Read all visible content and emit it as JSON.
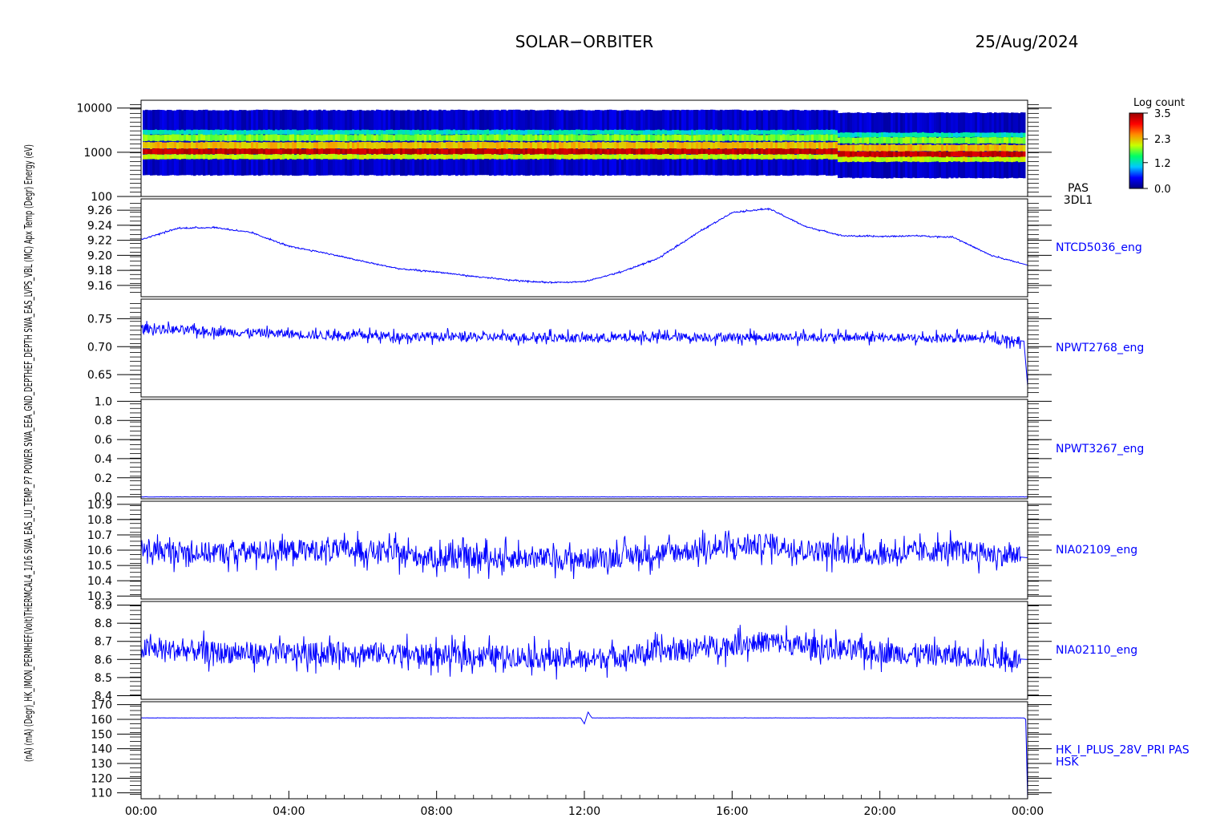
{
  "header": {
    "mission": "SOLAR−ORBITER",
    "date": "25/Aug/2024"
  },
  "y_axis_overlap_label": "(nA) (mA) (Degr)_HK_IMON_PERMHEF(Volt)THERMCAL4_1/16 SWA_EAS_LU_TEMP_P7 POWER SWA_EEA_GND_DEPTHEF_DEPTH SWA_EAS_LVPS_VBL (MC) Apx Temp (Degr) Energy (eV)",
  "time_axis": {
    "ticks": [
      "00:00",
      "04:00",
      "08:00",
      "12:00",
      "16:00",
      "20:00",
      "00:00"
    ],
    "hours": [
      0,
      4,
      8,
      12,
      16,
      20,
      24
    ]
  },
  "colorbar": {
    "title": "Log count",
    "ticks": [
      "3.5",
      "2.3",
      "1.2",
      "0.0"
    ],
    "stops": [
      "#00007f",
      "#0000ff",
      "#00c8ff",
      "#00ff64",
      "#c8ff00",
      "#ff8c00",
      "#ff0000",
      "#9a0000"
    ]
  },
  "chart_data": [
    {
      "type": "heatmap",
      "name": "PAS 3DL1",
      "side_label": [
        "PAS",
        "3DL1"
      ],
      "yscale": "log",
      "ylim": [
        100,
        15000
      ],
      "yticks": [
        "10000",
        "1000",
        "100"
      ],
      "ytick_values": [
        10000,
        1000,
        100
      ],
      "x_range_hours": [
        0,
        24
      ],
      "description_bands_eV": [
        {
          "low": 300,
          "high": 9000,
          "log_count": 0.3
        },
        {
          "low": 2500,
          "high": 3200,
          "log_count": 1.2
        },
        {
          "low": 1800,
          "high": 2500,
          "log_count": 1.8
        },
        {
          "low": 1200,
          "high": 1700,
          "log_count": 2.3
        },
        {
          "low": 900,
          "high": 1200,
          "log_count": 3.3
        },
        {
          "low": 700,
          "high": 900,
          "log_count": 2.0
        }
      ]
    },
    {
      "type": "line",
      "name": "NTCD5036_eng",
      "ylim": [
        9.145,
        9.275
      ],
      "yticks": [
        "9.26",
        "9.24",
        "9.22",
        "9.20",
        "9.18",
        "9.16"
      ],
      "ytick_values": [
        9.26,
        9.24,
        9.22,
        9.2,
        9.18,
        9.16
      ],
      "x_hours": [
        0,
        1,
        2,
        3,
        4,
        5,
        6,
        7,
        8,
        9,
        10,
        11,
        12,
        13,
        14,
        15,
        16,
        17,
        18,
        19,
        20,
        21,
        22,
        23,
        24
      ],
      "values": [
        9.221,
        9.236,
        9.237,
        9.23,
        9.212,
        9.203,
        9.192,
        9.182,
        9.178,
        9.172,
        9.167,
        9.164,
        9.165,
        9.178,
        9.196,
        9.228,
        9.257,
        9.262,
        9.238,
        9.226,
        9.225,
        9.226,
        9.224,
        9.2,
        9.187
      ]
    },
    {
      "type": "line",
      "name": "NPWT2768_eng",
      "ylim": [
        0.61,
        0.785
      ],
      "yticks": [
        "0.75",
        "0.70",
        "0.65"
      ],
      "ytick_values": [
        0.75,
        0.7,
        0.65
      ],
      "x_hours": [
        0,
        1,
        2,
        3,
        4,
        5,
        6,
        7,
        8,
        9,
        10,
        11,
        12,
        13,
        14,
        15,
        16,
        17,
        18,
        19,
        20,
        21,
        22,
        23,
        23.9,
        24
      ],
      "values": [
        0.733,
        0.73,
        0.727,
        0.725,
        0.723,
        0.72,
        0.72,
        0.719,
        0.718,
        0.717,
        0.717,
        0.717,
        0.715,
        0.716,
        0.717,
        0.717,
        0.717,
        0.717,
        0.717,
        0.717,
        0.716,
        0.715,
        0.715,
        0.714,
        0.71,
        0.63
      ]
    },
    {
      "type": "line",
      "name": "NPWT3267_eng",
      "ylim": [
        -0.02,
        1.02
      ],
      "yticks": [
        "1.0",
        "0.8",
        "0.6",
        "0.4",
        "0.2",
        "0.0"
      ],
      "ytick_values": [
        1.0,
        0.8,
        0.6,
        0.4,
        0.2,
        0.0
      ],
      "x_hours": [
        0,
        24
      ],
      "values": [
        0.0,
        0.0
      ]
    },
    {
      "type": "line",
      "name": "NIA02109_eng",
      "ylim": [
        10.28,
        10.92
      ],
      "yticks": [
        "10.9",
        "10.8",
        "10.7",
        "10.6",
        "10.5",
        "10.4",
        "10.3"
      ],
      "ytick_values": [
        10.9,
        10.8,
        10.7,
        10.6,
        10.5,
        10.4,
        10.3
      ],
      "x_hours": [
        0,
        2,
        4,
        6,
        8,
        10,
        12,
        14,
        16,
        17,
        18,
        20,
        22,
        24
      ],
      "values": [
        10.6,
        10.58,
        10.6,
        10.6,
        10.55,
        10.55,
        10.54,
        10.58,
        10.62,
        10.64,
        10.6,
        10.57,
        10.6,
        10.55
      ]
    },
    {
      "type": "line",
      "name": "NIA02110_eng",
      "ylim": [
        8.38,
        8.92
      ],
      "yticks": [
        "8.9",
        "8.8",
        "8.7",
        "8.6",
        "8.5",
        "8.4"
      ],
      "ytick_values": [
        8.9,
        8.8,
        8.7,
        8.6,
        8.5,
        8.4
      ],
      "x_hours": [
        0,
        2,
        4,
        6,
        8,
        10,
        12,
        14,
        16,
        17,
        18,
        20,
        22,
        24
      ],
      "values": [
        8.66,
        8.64,
        8.63,
        8.64,
        8.62,
        8.62,
        8.6,
        8.64,
        8.68,
        8.7,
        8.67,
        8.64,
        8.62,
        8.6
      ]
    },
    {
      "type": "line",
      "name": "HK_I_PLUS_28V_PRI PAS HSK",
      "side_label": [
        "HK_I_PLUS_28V_PRI PAS",
        "HSK"
      ],
      "ylim": [
        106,
        172
      ],
      "yticks": [
        "170",
        "160",
        "150",
        "140",
        "130",
        "120",
        "110"
      ],
      "ytick_values": [
        170,
        160,
        150,
        140,
        130,
        120,
        110
      ],
      "x_hours": [
        0,
        11.9,
        12.0,
        12.1,
        12.2,
        23.9,
        23.95,
        24
      ],
      "values": [
        161,
        161,
        157,
        165,
        161,
        161,
        160,
        106
      ]
    }
  ]
}
